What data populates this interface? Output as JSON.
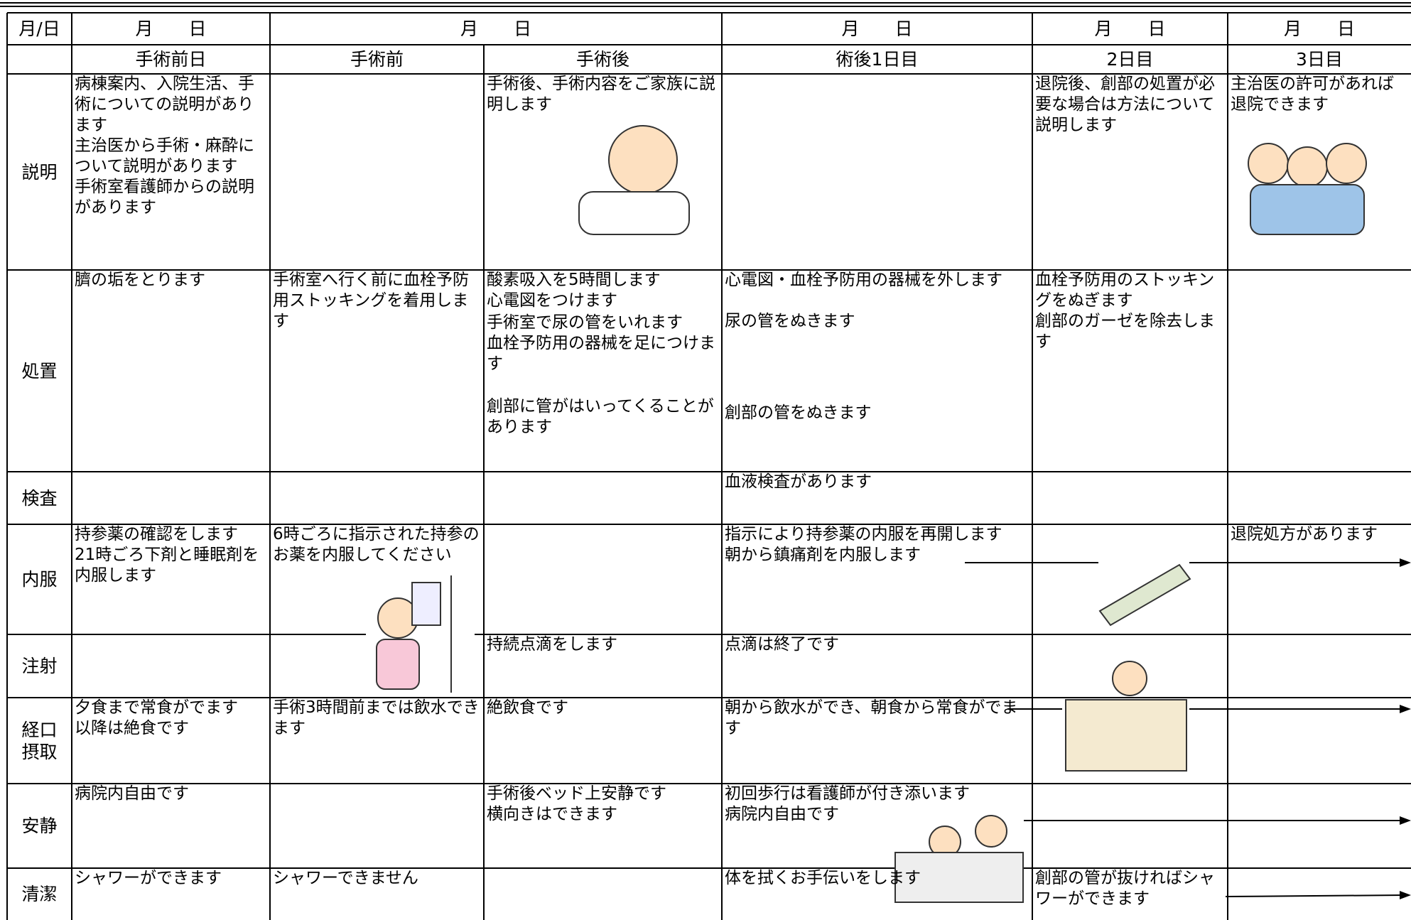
{
  "header": {
    "dates": [
      "月/日",
      "月　　日",
      "月　　日",
      "月　　日",
      "月　　日",
      "月　　日"
    ],
    "phases": [
      "手術前日",
      "手術前",
      "手術後",
      "術後1日目",
      "2日目",
      "3日目"
    ]
  },
  "rows": [
    {
      "label": [
        "説明"
      ],
      "cells": [
        [
          "病棟案内、入院生活、手術についての説明があります",
          "主治医から手術・麻酔について説明があります",
          "手術室看護師からの説明があります"
        ],
        [],
        [
          "手術後、手術内容をご家族に説明します"
        ],
        [],
        [
          "退院後、創部の処置が必要な場合は方法について説明します"
        ],
        [
          "主治医の許可があれば退院できます"
        ]
      ]
    },
    {
      "label": [
        "処置"
      ],
      "cells": [
        [
          "臍の垢をとります"
        ],
        [
          "手術室へ行く前に血栓予防用ストッキングを着用します"
        ],
        [
          "酸素吸入を5時間します",
          "心電図をつけます",
          "手術室で尿の管をいれます",
          "血栓予防用の器械を足につけます",
          "創部に管がはいってくることがあります"
        ],
        [
          "心電図・血栓予防用の器械を外します",
          "尿の管をぬきます",
          "創部の管をぬきます"
        ],
        [
          "血栓予防用のストッキングをぬぎます",
          "創部のガーゼを除去します"
        ],
        []
      ]
    },
    {
      "label": [
        "検査"
      ],
      "cells": [
        [],
        [],
        [],
        [
          "血液検査があります"
        ],
        [],
        []
      ]
    },
    {
      "label": [
        "内服"
      ],
      "cells": [
        [
          "持参薬の確認をします",
          "21時ごろ下剤と睡眠剤を内服します"
        ],
        [
          "6時ごろに指示された持参のお薬を内服してください"
        ],
        [],
        [
          "指示により持参薬の内服を再開します",
          "朝から鎮痛剤を内服します"
        ],
        [],
        [
          "退院処方があります"
        ]
      ]
    },
    {
      "label": [
        "注射"
      ],
      "cells": [
        [],
        [],
        [
          "持続点滴をします"
        ],
        [
          "点滴は終了です"
        ],
        [],
        []
      ]
    },
    {
      "label": [
        "経口",
        "摂取"
      ],
      "cells": [
        [
          "夕食まで常食がでます",
          "以降は絶食です"
        ],
        [
          "手術3時間前までは飲水できます"
        ],
        [
          "絶飲食です"
        ],
        [
          "朝から飲水ができ、朝食から常食がでます"
        ],
        [],
        []
      ]
    },
    {
      "label": [
        "安静"
      ],
      "cells": [
        [
          "病院内自由です"
        ],
        [],
        [
          "手術後ベッド上安静です",
          "横向きはできます"
        ],
        [
          "初回歩行は看護師が付き添います",
          "病院内自由です"
        ],
        [],
        []
      ]
    },
    {
      "label": [
        "清潔"
      ],
      "cells": [
        [
          "シャワーができます"
        ],
        [
          "シャワーできません"
        ],
        [],
        [
          "体を拭くお手伝いをします"
        ],
        [
          "創部の管が抜ければシャワーができます"
        ],
        []
      ]
    }
  ]
}
